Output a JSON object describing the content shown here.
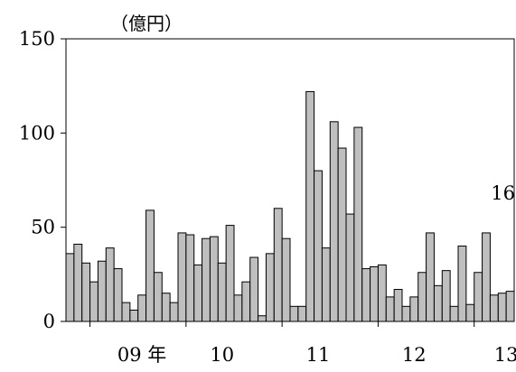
{
  "chart_data": {
    "type": "bar",
    "unit": "（億円）",
    "ylim": [
      0,
      150
    ],
    "yticks": [
      0,
      50,
      100,
      150
    ],
    "grid": false,
    "values": [
      36,
      41,
      31,
      21,
      32,
      39,
      28,
      10,
      6,
      14,
      59,
      26,
      15,
      10,
      47,
      46,
      30,
      44,
      45,
      31,
      51,
      14,
      21,
      34,
      3,
      36,
      60,
      44,
      8,
      8,
      122,
      80,
      39,
      106,
      92,
      57,
      103,
      28,
      29,
      30,
      13,
      17,
      8,
      13,
      26,
      47,
      19,
      27,
      8,
      40,
      9,
      26,
      47,
      14,
      15,
      16
    ],
    "xlabels": [
      {
        "text": "09 年",
        "at": 9.5
      },
      {
        "text": "10",
        "at": 19.5
      },
      {
        "text": "11",
        "at": 31.5
      },
      {
        "text": "12",
        "at": 43.5
      },
      {
        "text": "13",
        "at": 55.0
      }
    ],
    "annotations": [
      {
        "text": "16",
        "bar_index": 55
      }
    ]
  }
}
